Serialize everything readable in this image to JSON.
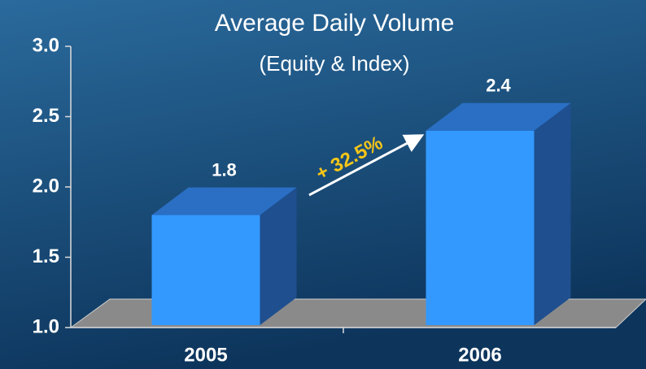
{
  "chart_data": {
    "type": "bar3d",
    "title": "Average Daily Volume",
    "subtitle": "(Equity & Index)",
    "categories": [
      "2005",
      "2006"
    ],
    "values": [
      1.8,
      2.4
    ],
    "color": "#3399ff",
    "ylim": [
      1,
      3
    ],
    "yticks": [
      {
        "value": 1,
        "label": "1.0"
      },
      1.5,
      {
        "value": 2,
        "label": "2.0"
      },
      2.5,
      {
        "value": 3,
        "label": "3.0"
      }
    ],
    "annotations": [
      "+ 32.5%"
    ]
  }
}
